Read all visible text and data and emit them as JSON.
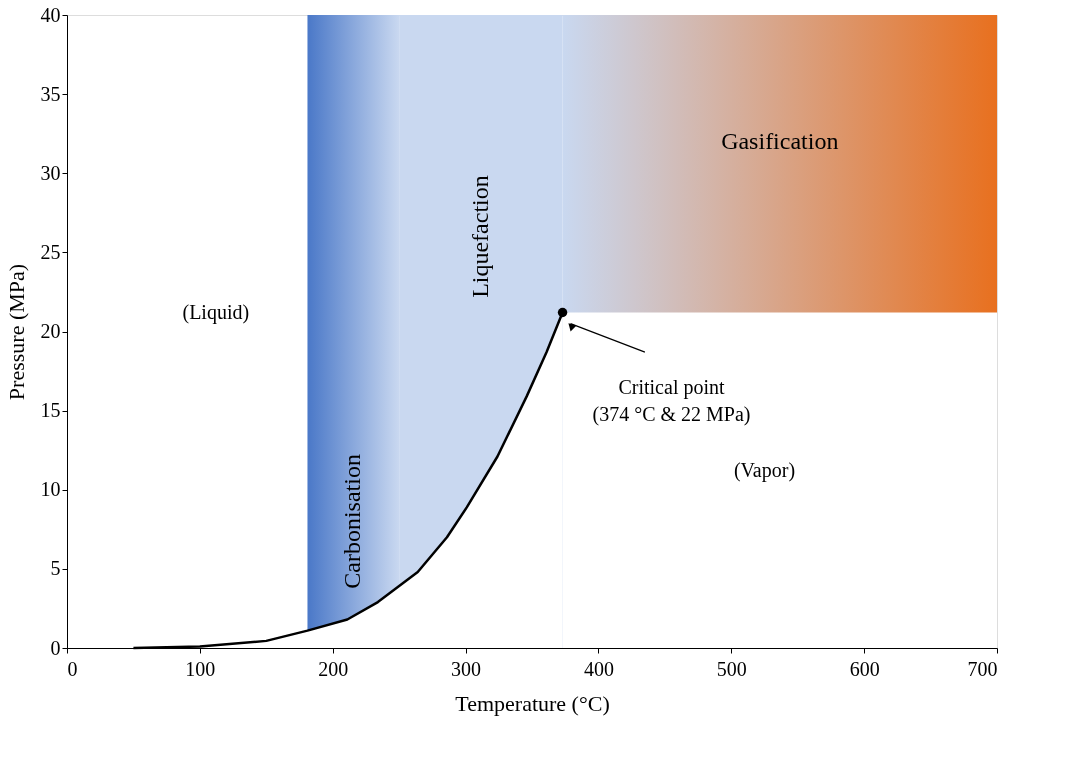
{
  "chart_data": {
    "type": "line",
    "xlabel": "Temperature (°C)",
    "ylabel": "Pressure (MPa)",
    "x": [
      50,
      100,
      150,
      181,
      211,
      234,
      264,
      286,
      301,
      324,
      346,
      361,
      373
    ],
    "series": [
      {
        "color": "#000000",
        "values": [
          0.0,
          0.1,
          0.45,
          1.1,
          1.8,
          2.9,
          4.8,
          7.0,
          8.9,
          12.1,
          15.9,
          18.7,
          21.2
        ]
      }
    ],
    "xlim": [
      0,
      700
    ],
    "ylim": [
      0,
      40
    ],
    "xticks": [
      0,
      100,
      200,
      300,
      400,
      500,
      600,
      700
    ],
    "yticks": [
      0,
      5,
      10,
      15,
      20,
      25,
      30,
      35,
      40
    ],
    "bands": [
      {
        "axis": "x",
        "from": 181,
        "to": 250,
        "label": "Carbonisation",
        "color": "#4a78c8"
      },
      {
        "axis": "x",
        "from": 250,
        "to": 373,
        "label": "Liquefaction",
        "color": "#c9d8f0"
      },
      {
        "axis": "x",
        "from": 373,
        "to": 700,
        "label": "Gasification",
        "color": "#e8701f"
      }
    ],
    "annotations": [
      "(Liquid)",
      "(Vapor)",
      "Critical point\n(374 °C & 22 MPa)"
    ],
    "grid": false,
    "marker": "none",
    "line_style": "solid"
  }
}
